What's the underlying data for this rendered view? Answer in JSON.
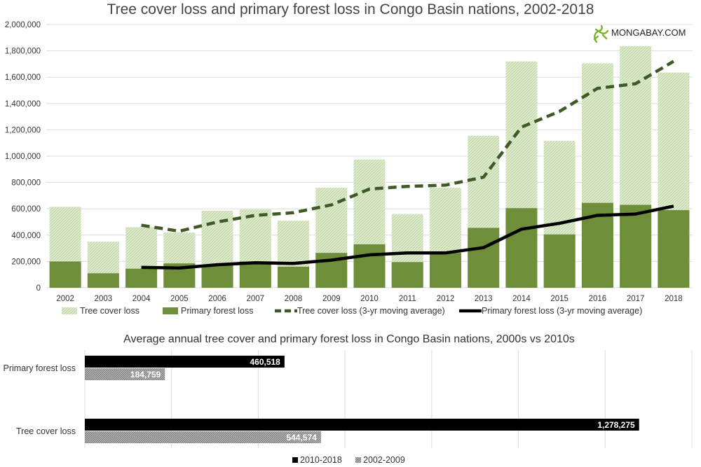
{
  "brand": {
    "name": "MONGABAY.COM",
    "icon": "gecko-icon"
  },
  "colors": {
    "tree_cover": "#d8e8c4",
    "tree_hatch": "#b9d19c",
    "primary": "#6e8e3a",
    "avg_tree": "#3f5a26",
    "avg_primary": "#000000",
    "bar_2010s": "#000000",
    "bar_2000s": "#8a8a8a",
    "grid": "#dcdcdc"
  },
  "chart_data": [
    {
      "type": "bar",
      "title": "Tree cover loss and primary forest loss in Congo Basin nations, 2002-2018",
      "categories": [
        "2002",
        "2003",
        "2004",
        "2005",
        "2006",
        "2007",
        "2008",
        "2009",
        "2010",
        "2011",
        "2012",
        "2013",
        "2014",
        "2015",
        "2016",
        "2017",
        "2018"
      ],
      "ylim": [
        0,
        2000000
      ],
      "yticks": [
        0,
        200000,
        400000,
        600000,
        800000,
        1000000,
        1200000,
        1400000,
        1600000,
        1800000,
        2000000
      ],
      "ytick_labels": [
        "0",
        "200,000",
        "400,000",
        "600,000",
        "800,000",
        "1,000,000",
        "1,200,000",
        "1,400,000",
        "1,600,000",
        "1,800,000",
        "2,000,000"
      ],
      "grid": true,
      "legend_position": "bottom",
      "series": [
        {
          "name": "Tree cover loss",
          "kind": "bar",
          "values": [
            615000,
            350000,
            460000,
            420000,
            585000,
            595000,
            510000,
            760000,
            975000,
            560000,
            760000,
            1155000,
            1720000,
            1115000,
            1705000,
            1835000,
            1635000
          ]
        },
        {
          "name": "Primary forest loss",
          "kind": "bar",
          "values": [
            200000,
            110000,
            145000,
            185000,
            170000,
            200000,
            160000,
            265000,
            330000,
            195000,
            265000,
            455000,
            605000,
            405000,
            645000,
            630000,
            590000
          ]
        },
        {
          "name": "Tree cover loss (3-yr moving average)",
          "kind": "line",
          "style": "dashed",
          "values": [
            null,
            null,
            475000,
            430000,
            500000,
            550000,
            570000,
            630000,
            750000,
            770000,
            780000,
            840000,
            1220000,
            1340000,
            1515000,
            1550000,
            1720000
          ]
        },
        {
          "name": "Primary forest loss (3-yr moving average)",
          "kind": "line",
          "style": "solid",
          "values": [
            null,
            null,
            155000,
            150000,
            175000,
            190000,
            185000,
            210000,
            250000,
            265000,
            265000,
            305000,
            445000,
            490000,
            550000,
            560000,
            620000
          ]
        }
      ]
    },
    {
      "type": "bar",
      "orientation": "horizontal",
      "title": "Average annual tree cover and primary forest loss in Congo Basin nations, 2000s vs 2010s",
      "categories": [
        "Primary forest loss",
        "Tree cover loss"
      ],
      "xlim": [
        0,
        1400000
      ],
      "grid": true,
      "legend_position": "bottom",
      "series": [
        {
          "name": "2010-2018",
          "values": [
            460518,
            1278275
          ],
          "labels": [
            "460,518",
            "1,278,275"
          ]
        },
        {
          "name": "2002-2009",
          "values": [
            184759,
            544574
          ],
          "labels": [
            "184,759",
            "544,574"
          ]
        }
      ]
    }
  ]
}
